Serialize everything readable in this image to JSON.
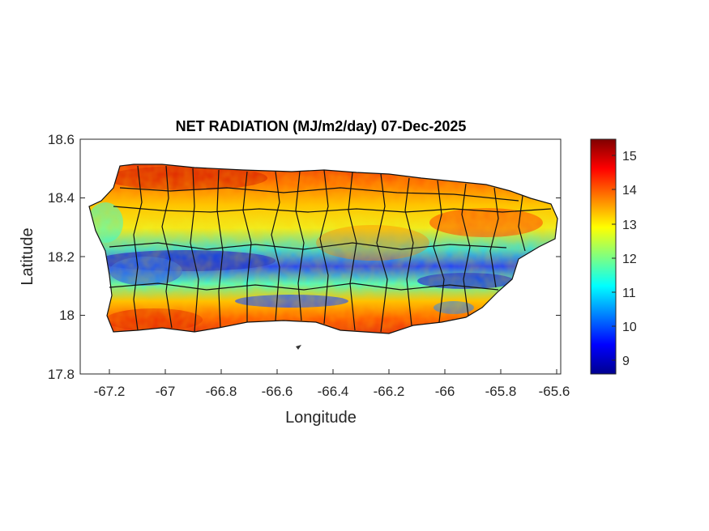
{
  "chart_data": {
    "type": "heatmap",
    "title": "NET RADIATION (MJ/m2/day) 07-Dec-2025",
    "xlabel": "Longitude",
    "ylabel": "Latitude",
    "xlim": [
      -67.3,
      -65.58
    ],
    "ylim": [
      17.8,
      18.6
    ],
    "x_ticks": [
      "-67.2",
      "-67",
      "-66.8",
      "-66.6",
      "-66.4",
      "-66.2",
      "-66",
      "-65.8",
      "-65.6"
    ],
    "y_ticks": [
      "18.6",
      "18.4",
      "18.2",
      "18",
      "17.8"
    ],
    "colorbar": {
      "colormap": "jet",
      "range": [
        8.6,
        15.5
      ],
      "ticks": [
        "15",
        "14",
        "13",
        "12",
        "11",
        "10",
        "9"
      ]
    },
    "region": "Puerto Rico",
    "pattern": {
      "north_coast": "high (14-15)",
      "west_central_band_lat_18.15": "low (9-11)",
      "east_central_band_lat_18.1": "low (9-11)",
      "south_coast": "high (14-15)"
    }
  }
}
